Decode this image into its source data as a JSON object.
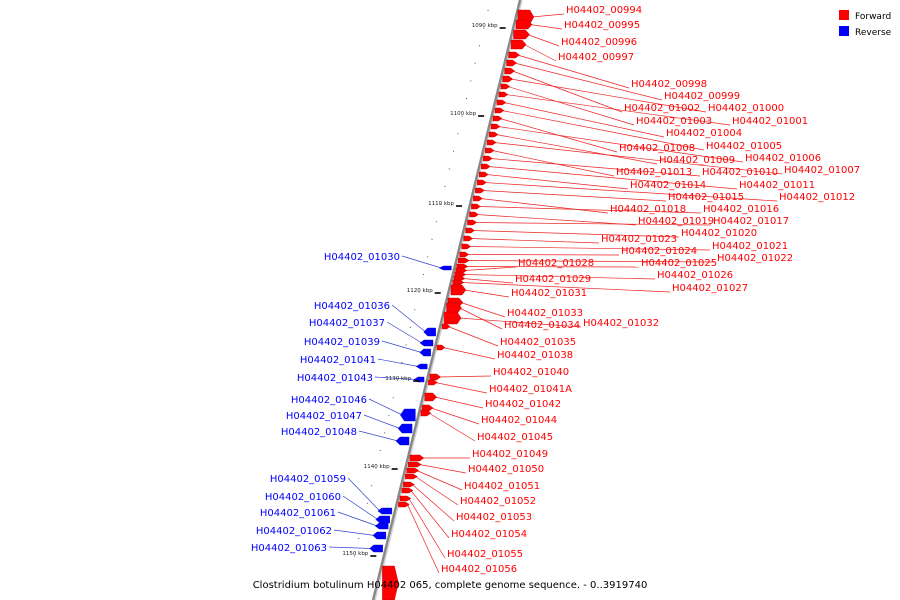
{
  "caption": "Clostridium botulinum H04402 065, complete genome sequence. - 0..3919740",
  "legend": [
    {
      "label": "Forward",
      "color": "#ff0000"
    },
    {
      "label": "Reverse",
      "color": "#0000ff"
    }
  ],
  "colors": {
    "forward": "#ff0000",
    "reverse": "#0000ff",
    "leader_forward": "#ee2222",
    "leader_reverse": "#3344cc",
    "backbone": "#999999"
  },
  "ticks": [
    "1090 kbp",
    "1100 kbp",
    "1110 kbp",
    "1120 kbp",
    "1130 kbp",
    "1140 kbp",
    "1150 kbp"
  ],
  "forward_genes": [
    "H04402_00994",
    "H04402_00995",
    "H04402_00996",
    "H04402_00997",
    "H04402_00998",
    "H04402_00999",
    "H04402_01002",
    "H04402_01000",
    "H04402_01003",
    "H04402_01001",
    "H04402_01004",
    "H04402_01005",
    "H04402_01008",
    "H04402_01006",
    "H04402_01009",
    "H04402_01007",
    "H04402_01013",
    "H04402_01010",
    "H04402_01011",
    "H04402_01014",
    "H04402_01012",
    "H04402_01015",
    "H04402_01018",
    "H04402_01016",
    "H04402_01019",
    "H04402_01017",
    "H04402_01020",
    "H04402_01023",
    "H04402_01021",
    "H04402_01024",
    "H04402_01022",
    "H04402_01025",
    "H04402_01028",
    "H04402_01026",
    "H04402_01029",
    "H04402_01027",
    "H04402_01031",
    "H04402_01033",
    "H04402_01034",
    "H04402_01032",
    "H04402_01035",
    "H04402_01038",
    "H04402_01040",
    "H04402_01041A",
    "H04402_01042",
    "H04402_01044",
    "H04402_01045",
    "H04402_01049",
    "H04402_01050",
    "H04402_01051",
    "H04402_01052",
    "H04402_01053",
    "H04402_01054",
    "H04402_01055",
    "H04402_01056"
  ],
  "reverse_genes": [
    "H04402_01030",
    "H04402_01036",
    "H04402_01037",
    "H04402_01039",
    "H04402_01041",
    "H04402_01043",
    "H04402_01046",
    "H04402_01047",
    "H04402_01048",
    "H04402_01059",
    "H04402_01060",
    "H04402_01061",
    "H04402_01062",
    "H04402_01063"
  ]
}
